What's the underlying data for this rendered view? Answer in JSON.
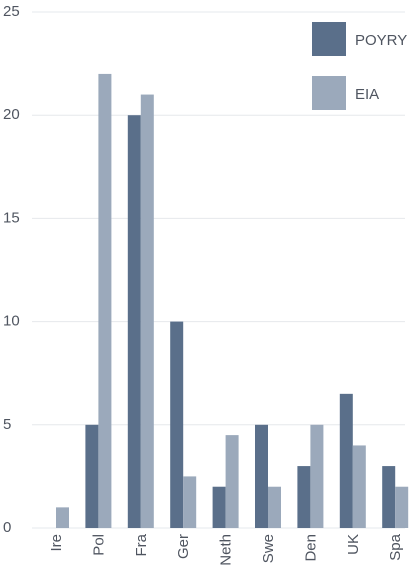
{
  "chart_data": {
    "type": "bar",
    "categories": [
      "Ire",
      "Pol",
      "Fra",
      "Ger",
      "Neth",
      "Swe",
      "Den",
      "UK",
      "Spa"
    ],
    "series": [
      {
        "name": "POYRY",
        "color": "#5a6f8a",
        "values": [
          0,
          5,
          20,
          10,
          2,
          5,
          3,
          6.5,
          3
        ]
      },
      {
        "name": "EIA",
        "color": "#9ba9bb",
        "values": [
          1,
          22,
          21,
          2.5,
          4.5,
          2,
          5,
          4,
          2
        ]
      }
    ],
    "ylim": [
      0,
      25
    ],
    "yticks": [
      0,
      5,
      10,
      15,
      20,
      25
    ],
    "grid": true,
    "legend": "top-right"
  }
}
